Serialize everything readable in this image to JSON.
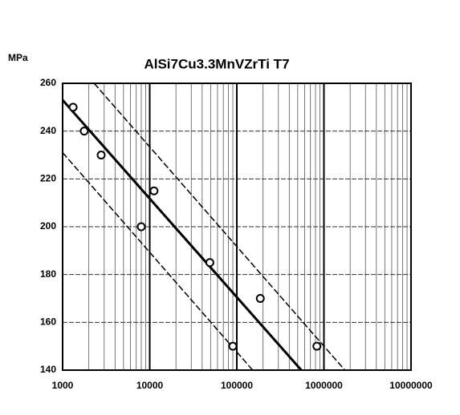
{
  "chart_data": {
    "type": "scatter",
    "title": "AlSi7Cu3.3MnVZrTi T7",
    "y_label": "MPa",
    "log_x": true,
    "grid": true,
    "color": "#000000",
    "xlim": [
      1000,
      10000000
    ],
    "xticks": [
      1000,
      10000,
      100000,
      1000000,
      10000000
    ],
    "ylim": [
      140,
      260
    ],
    "yticks": [
      140,
      160,
      180,
      200,
      220,
      240,
      260
    ],
    "points": {
      "x": [
        1320,
        1770,
        2770,
        11200,
        8000,
        49000,
        90000,
        186000,
        830000
      ],
      "y": [
        250,
        240,
        230,
        215,
        200,
        185,
        150,
        170,
        150
      ]
    },
    "lines": [
      {
        "x": [
          1000,
          550000
        ],
        "y": [
          253,
          140
        ],
        "width": 3,
        "dashed": false
      },
      {
        "x": [
          2300,
          1740000
        ],
        "y": [
          260,
          140
        ],
        "width": 1.5,
        "dashed": true
      },
      {
        "x": [
          1000,
          152000
        ],
        "y": [
          231,
          140
        ],
        "width": 1.5,
        "dashed": true
      }
    ]
  }
}
